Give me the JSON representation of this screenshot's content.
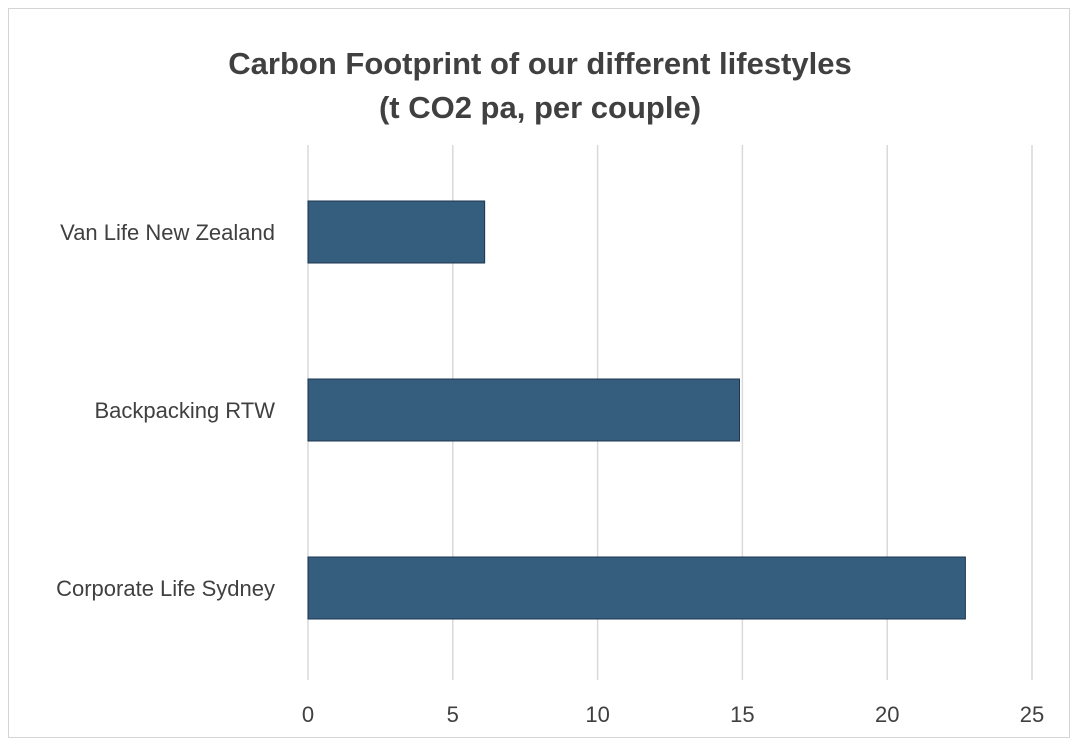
{
  "chart_data": {
    "type": "bar",
    "orientation": "horizontal",
    "title": "Carbon Footprint of our different lifestyles",
    "subtitle": "(t CO2 pa, per couple)",
    "categories": [
      "Van Life New Zealand",
      "Backpacking RTW",
      "Corporate Life Sydney"
    ],
    "values": [
      6.1,
      14.9,
      22.7
    ],
    "xlim": [
      0,
      25
    ],
    "xticks": [
      0,
      5,
      10,
      15,
      20,
      25
    ],
    "grid": true,
    "legend": "none",
    "bar_color": "#355D7E",
    "grid_color": "#d9d9d9"
  }
}
